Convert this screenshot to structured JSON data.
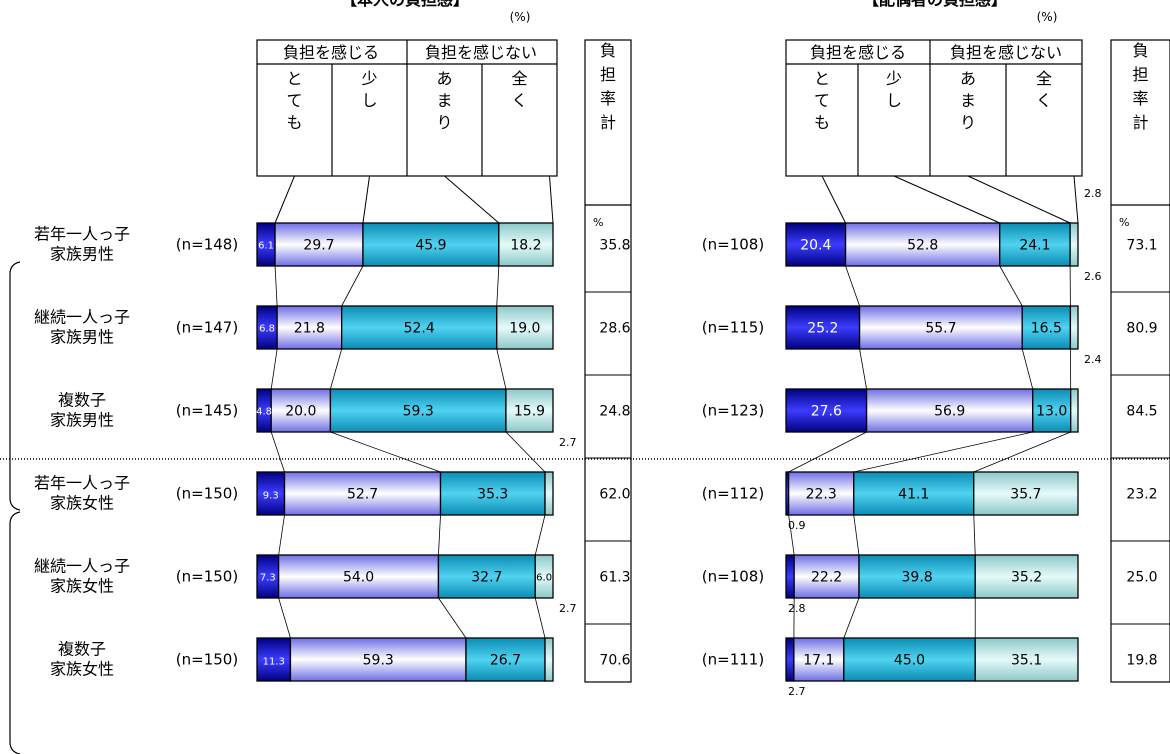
{
  "chart_data": [
    {
      "type": "bar",
      "stacked": true,
      "orientation": "horizontal",
      "title": "【本人の負担感】",
      "unit_label": "(%)",
      "group_headers": [
        "負担を感じる",
        "負担を感じない"
      ],
      "category_headers": [
        "とても",
        "少し",
        "あまり",
        "全く"
      ],
      "total_header": "負担率計",
      "total_unit": "%",
      "rows": [
        {
          "label": [
            "若年一人っ子",
            "家族男性"
          ],
          "n": "(n=148)",
          "values": [
            6.1,
            29.7,
            45.9,
            18.2
          ],
          "total": 35.8
        },
        {
          "label": [
            "継続一人っ子",
            "家族男性"
          ],
          "n": "(n=147)",
          "values": [
            6.8,
            21.8,
            52.4,
            19.0
          ],
          "total": 28.6
        },
        {
          "label": [
            "複数子",
            "家族男性"
          ],
          "n": "(n=145)",
          "values": [
            4.8,
            20.0,
            59.3,
            15.9
          ],
          "total": 24.8
        },
        {
          "label": [
            "若年一人っ子",
            "家族女性"
          ],
          "n": "(n=150)",
          "values": [
            9.3,
            52.7,
            35.3,
            2.7
          ],
          "total": 62.0
        },
        {
          "label": [
            "継続一人っ子",
            "家族女性"
          ],
          "n": "(n=150)",
          "values": [
            7.3,
            54.0,
            32.7,
            6.0
          ],
          "total": 61.3
        },
        {
          "label": [
            "複数子",
            "家族女性"
          ],
          "n": "(n=150)",
          "values": [
            11.3,
            59.3,
            26.7,
            2.7
          ],
          "total": 70.6
        }
      ]
    },
    {
      "type": "bar",
      "stacked": true,
      "orientation": "horizontal",
      "title": "【配偶者の負担感】",
      "unit_label": "(%)",
      "group_headers": [
        "負担を感じる",
        "負担を感じない"
      ],
      "category_headers": [
        "とても",
        "少し",
        "あまり",
        "全く"
      ],
      "total_header": "負担率計",
      "total_unit": "%",
      "rows": [
        {
          "n": "(n=108)",
          "values": [
            20.4,
            52.8,
            24.1,
            2.8
          ],
          "total": 73.1
        },
        {
          "n": "(n=115)",
          "values": [
            25.2,
            55.7,
            16.5,
            2.6
          ],
          "total": 80.9
        },
        {
          "n": "(n=123)",
          "values": [
            27.6,
            56.9,
            13.0,
            2.4
          ],
          "total": 84.5
        },
        {
          "n": "(n=112)",
          "values": [
            0.9,
            22.3,
            41.1,
            35.7
          ],
          "total": 23.2
        },
        {
          "n": "(n=108)",
          "values": [
            2.8,
            22.2,
            39.8,
            35.2
          ],
          "total": 25.0
        },
        {
          "n": "(n=111)",
          "values": [
            2.7,
            17.1,
            45.0,
            35.1
          ],
          "total": 19.8
        }
      ]
    }
  ],
  "colors": {
    "very": "#0000b4",
    "little": "#aab4f0",
    "notmuch": "#1ea0c8",
    "notatall": "#b4dcdc",
    "text_light": "#ffffff",
    "text_dark": "#000000"
  }
}
